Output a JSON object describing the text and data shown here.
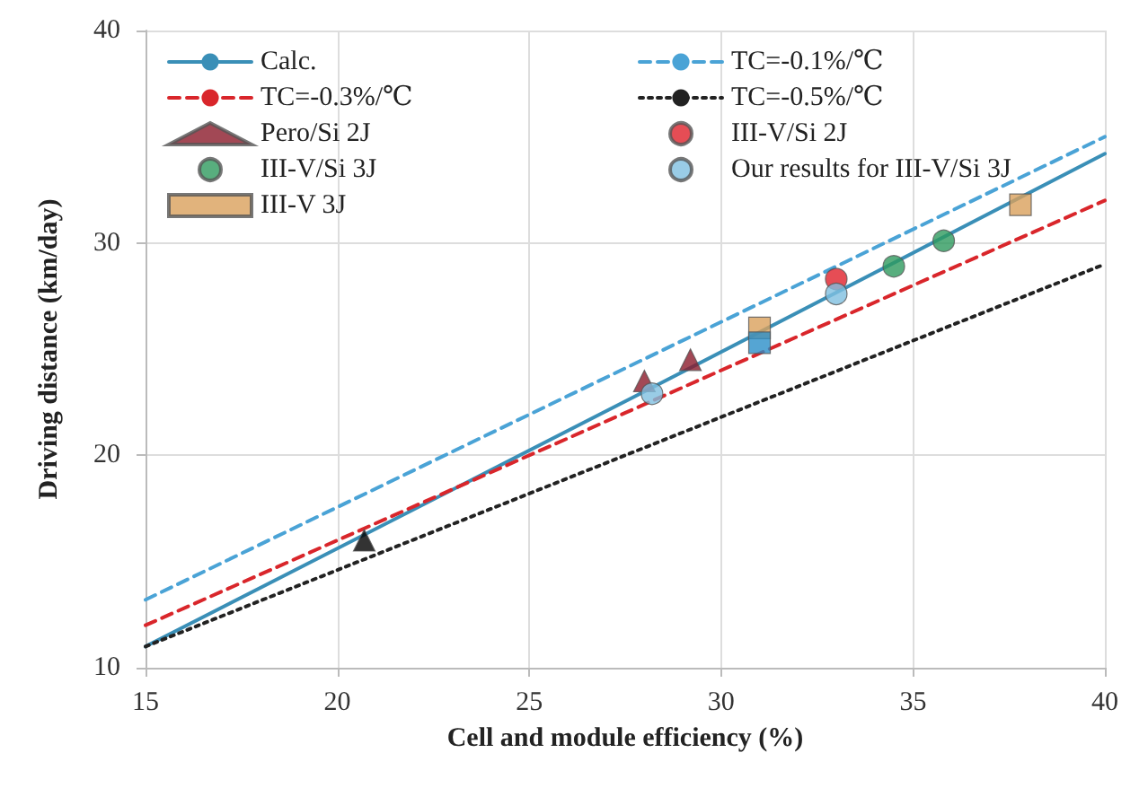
{
  "chart_data": {
    "type": "scatter",
    "xlabel": "Cell and module efficiency (%)",
    "ylabel": "Driving distance (km/day)",
    "xlim": [
      15,
      40
    ],
    "xticks": [
      15,
      20,
      25,
      30,
      35,
      40
    ],
    "ylim": [
      10,
      40
    ],
    "yticks": [
      10,
      20,
      30,
      40
    ],
    "grid": true,
    "legend": "top left",
    "series": [
      {
        "name": "Calc.",
        "type": "line",
        "line_style": "solid",
        "color": "#3a8fb7",
        "x": [
          15,
          28,
          40
        ],
        "values": [
          11.0,
          23.0,
          34.2
        ]
      },
      {
        "name": "TC=-0.1%/℃",
        "type": "line",
        "line_style": "dashed",
        "color": "#4aa3d6",
        "x": [
          15,
          40
        ],
        "values": [
          13.2,
          35.0
        ]
      },
      {
        "name": "TC=-0.3%/℃",
        "type": "line",
        "line_style": "dashed",
        "color": "#d9262b",
        "x": [
          15,
          40
        ],
        "values": [
          12.0,
          32.0
        ]
      },
      {
        "name": "TC=-0.5%/℃",
        "type": "line",
        "line_style": "dotted",
        "color": "#222222",
        "x": [
          15,
          40
        ],
        "values": [
          11.0,
          29.0
        ]
      },
      {
        "name": "Pero/Si 2J",
        "marker": "triangle",
        "color": "#8b1a2b",
        "x": [
          28.0,
          29.2
        ],
        "values": [
          23.5,
          24.5
        ]
      },
      {
        "name": "III-V/Si 2J",
        "marker": "circle",
        "color": "#e0202a",
        "x": [
          33.0
        ],
        "values": [
          28.3
        ]
      },
      {
        "name": "III-V/Si 3J",
        "marker": "circle",
        "color": "#2e9a5e",
        "x": [
          34.5,
          35.8
        ],
        "values": [
          28.9,
          30.1
        ]
      },
      {
        "name": "Our results for III-V/Si 3J",
        "marker": "circle",
        "color": "#7fbfe0",
        "x": [
          28.2,
          33.0
        ],
        "values": [
          22.9,
          27.6
        ]
      },
      {
        "name": "III-V 3J",
        "marker": "square",
        "color": "#d9a05b",
        "x": [
          31.0,
          37.8
        ],
        "values": [
          26.0,
          31.8
        ]
      },
      {
        "marker": "square",
        "color": "#2a8fc8",
        "x": [
          31.0
        ],
        "values": [
          25.3
        ]
      },
      {
        "marker": "triangle",
        "color": "#000000",
        "x": [
          20.7
        ],
        "values": [
          16.0
        ]
      }
    ]
  }
}
